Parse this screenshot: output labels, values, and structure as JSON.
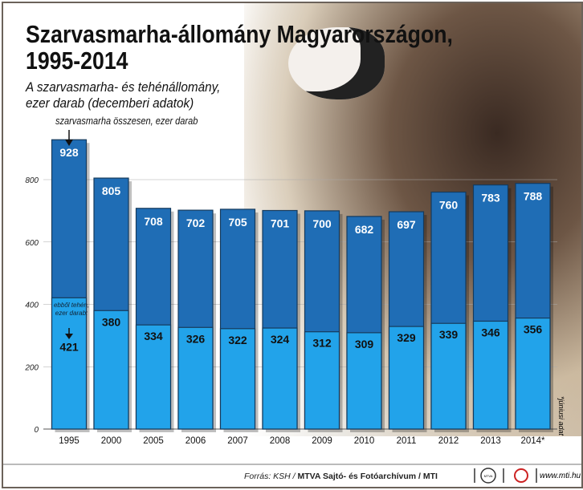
{
  "chart_data": {
    "type": "bar",
    "title": "Szarvasmarha-állomány Magyarországon, 1995-2014",
    "subtitle_lines": [
      "A szarvasmarha- és tehénállomány,",
      "ezer darab (decemberi adatok)"
    ],
    "categories": [
      "1995",
      "2000",
      "2005",
      "2006",
      "2007",
      "2008",
      "2009",
      "2010",
      "2011",
      "2012",
      "2013",
      "2014*"
    ],
    "series": [
      {
        "name": "szarvasmarha összesen, ezer darab",
        "values": [
          928,
          805,
          708,
          702,
          705,
          701,
          700,
          682,
          697,
          760,
          783,
          788
        ],
        "color": "#1f6db5"
      },
      {
        "name": "ebből tehén, ezer darab",
        "values": [
          421,
          380,
          334,
          326,
          322,
          324,
          312,
          309,
          329,
          339,
          346,
          356
        ],
        "color": "#22a3ea"
      }
    ],
    "ylim": [
      0,
      900
    ],
    "yticks": [
      "0",
      "200",
      "400",
      "600",
      "800"
    ],
    "grid": true
  },
  "annotations": {
    "total": "szarvasmarha összesen, ezer darab",
    "cow": "ebből tehén, ezer darab:",
    "footnote": "*júniusi adat"
  },
  "footer": {
    "source_prefix": "Forrás: KSH / ",
    "source_bold": "MTVA Sajtó- és Fotóarchívum / MTI",
    "url": "www.mti.hu",
    "logo1": "MTVA"
  }
}
